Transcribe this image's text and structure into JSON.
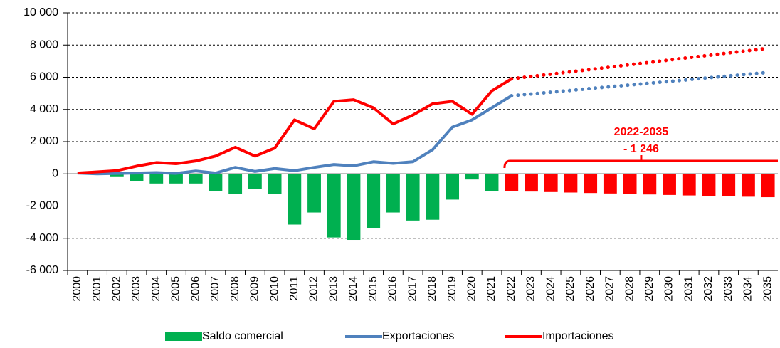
{
  "chart_data": {
    "type": "bar_line",
    "categories": [
      "2000",
      "2001",
      "2002",
      "2003",
      "2004",
      "2005",
      "2006",
      "2007",
      "2008",
      "2009",
      "2010",
      "2011",
      "2012",
      "2013",
      "2014",
      "2015",
      "2016",
      "2017",
      "2018",
      "2019",
      "2020",
      "2021",
      "2022",
      "2023",
      "2024",
      "2025",
      "2026",
      "2027",
      "2028",
      "2029",
      "2030",
      "2031",
      "2032",
      "2033",
      "2034",
      "2035"
    ],
    "projected_from": "2022",
    "series": [
      {
        "name": "Saldo comercial",
        "kind": "bar",
        "color": "#00b050",
        "projection_color": "#ff0000",
        "values": [
          0,
          -50,
          -200,
          -450,
          -600,
          -600,
          -600,
          -1050,
          -1250,
          -950,
          -1250,
          -3150,
          -2400,
          -3950,
          -4100,
          -3350,
          -2400,
          -2900,
          -2850,
          -1600,
          -350,
          -1050,
          -1050,
          -1100,
          -1130,
          -1160,
          -1190,
          -1220,
          -1250,
          -1280,
          -1310,
          -1340,
          -1370,
          -1400,
          -1420,
          -1450
        ]
      },
      {
        "name": "Exportaciones",
        "kind": "line",
        "color": "#4f81bd",
        "values": [
          50,
          0,
          30,
          50,
          80,
          30,
          180,
          50,
          400,
          150,
          330,
          200,
          400,
          580,
          500,
          750,
          650,
          750,
          1500,
          2900,
          3350,
          4100,
          4850,
          4960,
          5070,
          5180,
          5300,
          5410,
          5520,
          5630,
          5740,
          5850,
          5970,
          6080,
          6190,
          6300
        ]
      },
      {
        "name": "Importaciones",
        "kind": "line",
        "color": "#ff0000",
        "values": [
          50,
          120,
          200,
          480,
          700,
          630,
          800,
          1100,
          1650,
          1100,
          1600,
          3350,
          2800,
          4500,
          4600,
          4100,
          3100,
          3650,
          4350,
          4500,
          3700,
          5150,
          5900,
          6050,
          6190,
          6340,
          6480,
          6630,
          6780,
          6920,
          7070,
          7220,
          7360,
          7510,
          7650,
          7800
        ]
      }
    ],
    "annotation": {
      "title": "2022-2035",
      "label": "- 1 246",
      "color": "#ff0000"
    },
    "ylim": [
      -6000,
      10000
    ],
    "yticks": [
      {
        "value": -6000,
        "label": "-6 000"
      },
      {
        "value": -4000,
        "label": "-4 000"
      },
      {
        "value": -2000,
        "label": "-2 000"
      },
      0,
      {
        "value": 2000,
        "label": "2 000"
      },
      {
        "value": 4000,
        "label": "4 000"
      },
      {
        "value": 6000,
        "label": "6 000"
      },
      {
        "value": 8000,
        "label": "8 000"
      },
      {
        "value": 10000,
        "label": "10 000"
      }
    ],
    "grid": true,
    "legend": "bottom"
  }
}
